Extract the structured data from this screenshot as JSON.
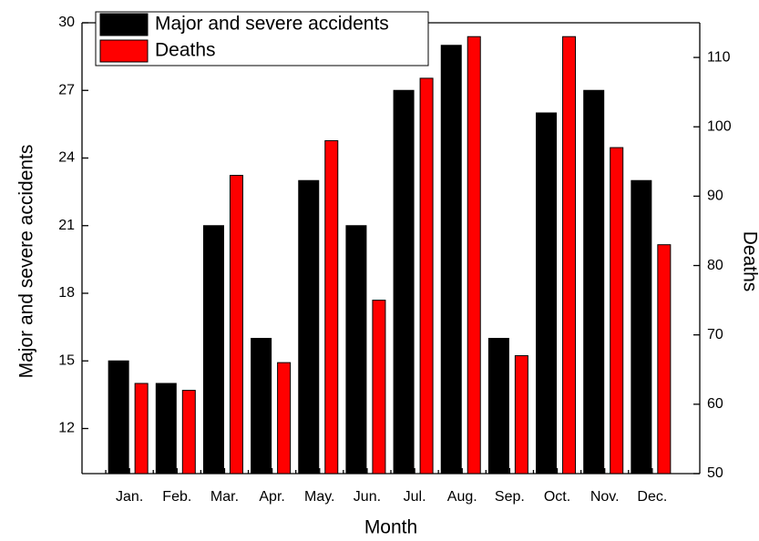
{
  "chart_data": {
    "type": "bar",
    "xlabel": "Month",
    "ylabel": "Major and severe accidents",
    "y2label": "Deaths",
    "categories": [
      "Jan.",
      "Feb.",
      "Mar.",
      "Apr.",
      "May.",
      "Jun.",
      "Jul.",
      "Aug.",
      "Sep.",
      "Oct.",
      "Nov.",
      "Dec."
    ],
    "series": [
      {
        "name": "Major and severe accidents",
        "color": "#000000",
        "values": [
          15,
          14,
          21,
          16,
          23,
          21,
          27,
          29,
          16,
          26,
          27,
          23
        ]
      },
      {
        "name": "Deaths",
        "color": "#ff0000",
        "axis": "y2",
        "values": [
          63,
          62,
          93,
          66,
          98,
          75,
          107,
          113,
          67,
          113,
          97,
          83
        ]
      }
    ],
    "ylim": [
      10,
      30
    ],
    "yticks": [
      12,
      15,
      18,
      21,
      24,
      27,
      30
    ],
    "y2lim": [
      50,
      115
    ],
    "y2ticks": [
      50,
      60,
      70,
      80,
      90,
      100,
      110
    ],
    "legend": "upper left",
    "grid": false
  }
}
